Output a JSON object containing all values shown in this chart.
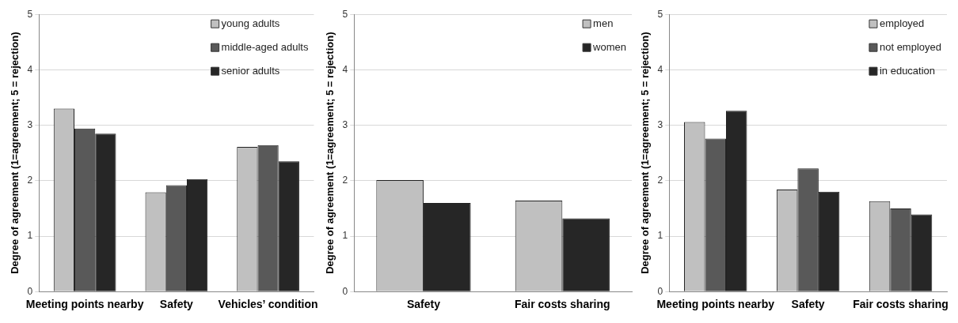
{
  "chart_data": [
    {
      "type": "bar",
      "ylabel": "Degree of agreement (1=agreement; 5 = rejection)",
      "categories": [
        "Meeting points nearby",
        "Safety",
        "Vehicles’ condition"
      ],
      "series": [
        {
          "name": "young adults",
          "color": "#c0c0c0",
          "values": [
            3.3,
            1.79,
            2.61
          ]
        },
        {
          "name": "middle-aged adults",
          "color": "#595959",
          "values": [
            2.94,
            1.92,
            2.64
          ]
        },
        {
          "name": "senior adults",
          "color": "#262626",
          "values": [
            2.85,
            2.03,
            2.35
          ]
        }
      ],
      "ylim": [
        0,
        5
      ],
      "yticks": [
        0,
        1,
        2,
        3,
        4,
        5
      ],
      "grid": "y",
      "legend": "top right"
    },
    {
      "type": "bar",
      "ylabel": "Degree of agreement (1=agreement; 5 = rejection)",
      "categories": [
        "Safety",
        "Fair costs sharing"
      ],
      "series": [
        {
          "name": "men",
          "color": "#c0c0c0",
          "values": [
            2.01,
            1.64
          ]
        },
        {
          "name": "women",
          "color": "#262626",
          "values": [
            1.6,
            1.32
          ]
        }
      ],
      "ylim": [
        0,
        5
      ],
      "yticks": [
        0,
        1,
        2,
        3,
        4,
        5
      ],
      "grid": "y",
      "legend": "top right"
    },
    {
      "type": "bar",
      "ylabel": "Degree of agreement (1=agreement; 5 = rejection)",
      "categories": [
        "Meeting points nearby",
        "Safety",
        "Fair costs sharing"
      ],
      "series": [
        {
          "name": "employed",
          "color": "#c0c0c0",
          "values": [
            3.06,
            1.84,
            1.63
          ]
        },
        {
          "name": "not employed",
          "color": "#595959",
          "values": [
            2.76,
            2.22,
            1.5
          ]
        },
        {
          "name": "in education",
          "color": "#262626",
          "values": [
            3.26,
            1.8,
            1.39
          ]
        }
      ],
      "ylim": [
        0,
        5
      ],
      "yticks": [
        0,
        1,
        2,
        3,
        4,
        5
      ],
      "grid": "y",
      "legend": "top right"
    }
  ]
}
